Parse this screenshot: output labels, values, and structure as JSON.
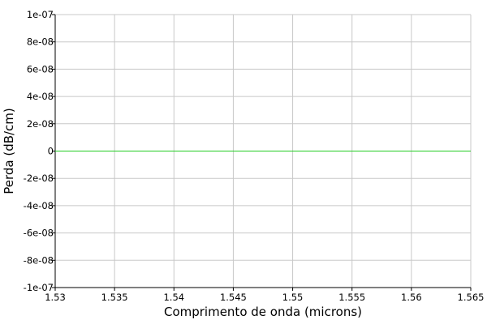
{
  "chart_data": {
    "type": "line",
    "xlabel": "Comprimento de onda (microns)",
    "ylabel": "Perda (dB/cm)",
    "xlim": [
      1.53,
      1.565
    ],
    "ylim": [
      -1e-07,
      1e-07
    ],
    "x_ticks": [
      1.53,
      1.535,
      1.54,
      1.545,
      1.55,
      1.555,
      1.56,
      1.565
    ],
    "x_tick_labels": [
      "1.53",
      "1.535",
      "1.54",
      "1.545",
      "1.55",
      "1.555",
      "1.56",
      "1.565"
    ],
    "y_ticks": [
      1e-07,
      8e-08,
      6e-08,
      4e-08,
      2e-08,
      0,
      -2e-08,
      -4e-08,
      -6e-08,
      -8e-08,
      -1e-07
    ],
    "y_tick_labels": [
      "1e-07",
      "8e-08",
      "6e-08",
      "4e-08",
      "2e-08",
      "0",
      "-2e-08",
      "-4e-08",
      "-6e-08",
      "-8e-08",
      "-1e-07"
    ],
    "grid": true,
    "series": [
      {
        "color": "#22cc22",
        "x": [
          1.53,
          1.565
        ],
        "y": [
          0,
          0
        ]
      }
    ]
  }
}
